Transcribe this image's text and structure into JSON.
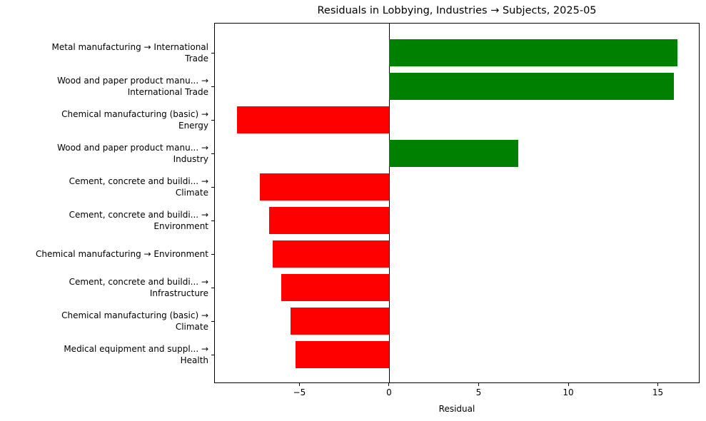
{
  "chart_data": {
    "type": "bar",
    "orientation": "horizontal",
    "title": "Residuals in Lobbying, Industries → Subjects, 2025-05",
    "xlabel": "Residual",
    "ylabel": "",
    "xlim": [
      -9.76,
      17.33
    ],
    "grid": false,
    "legend": null,
    "xticks": [
      -5,
      0,
      5,
      10,
      15
    ],
    "xtick_labels": [
      "−5",
      "0",
      "5",
      "10",
      "15"
    ],
    "categories": [
      [
        "Metal manufacturing → International",
        "Trade"
      ],
      [
        "Wood and paper product manu... →",
        "International Trade"
      ],
      [
        "Chemical manufacturing (basic) →",
        "Energy"
      ],
      [
        "Wood and paper product manu... →",
        "Industry"
      ],
      [
        "Cement, concrete and buildi... →",
        "Climate"
      ],
      [
        "Cement, concrete and buildi... →",
        "Environment"
      ],
      [
        "Chemical manufacturing → Environment"
      ],
      [
        "Cement, concrete and buildi... →",
        "Infrastructure"
      ],
      [
        "Chemical manufacturing (basic) →",
        "Climate"
      ],
      [
        "Medical equipment and suppl... →",
        "Health"
      ]
    ],
    "values": [
      16.1,
      15.9,
      -8.5,
      7.2,
      -7.2,
      -6.7,
      -6.5,
      -6.0,
      -5.5,
      -5.2
    ],
    "colors": {
      "positive": "#008000",
      "negative": "#ff0000"
    }
  }
}
